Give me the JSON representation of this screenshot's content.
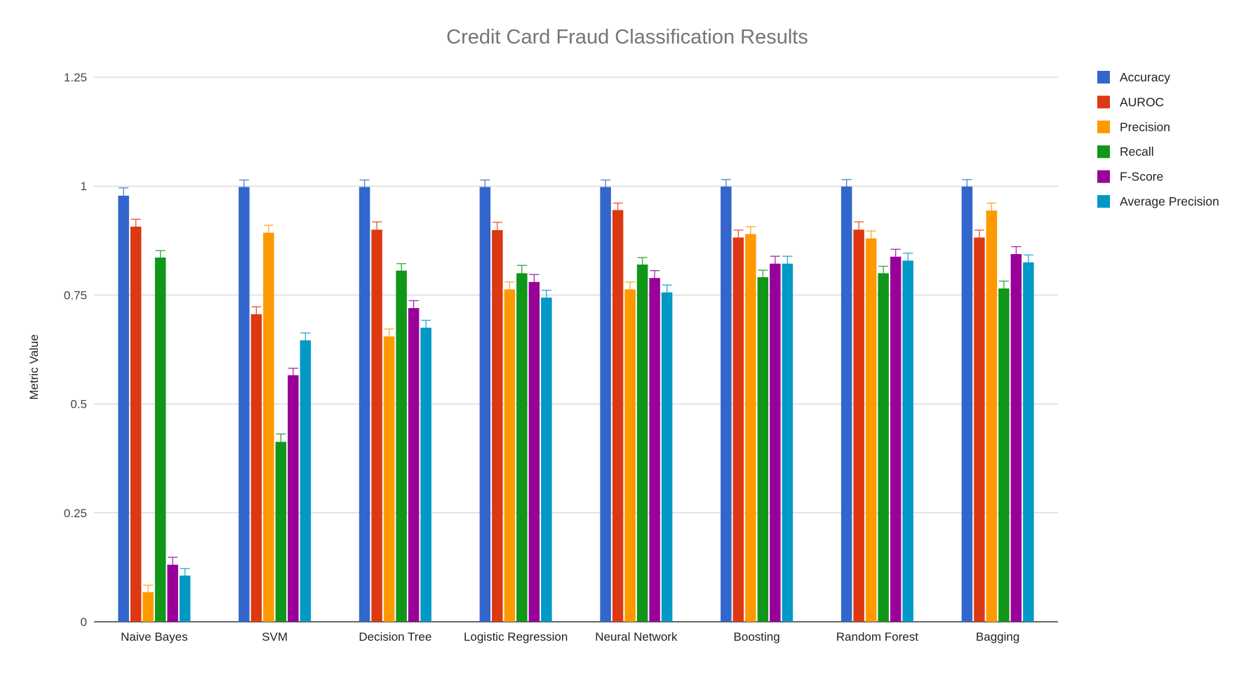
{
  "chart_data": {
    "type": "bar",
    "title": "Credit Card Fraud Classification Results",
    "xlabel": "",
    "ylabel": "Metric Value",
    "ylim": [
      0,
      1.25
    ],
    "yticks": [
      0,
      0.25,
      0.5,
      0.75,
      1,
      1.25
    ],
    "ytick_labels": [
      "0",
      "0.25",
      "0.5",
      "0.75",
      "1",
      "1.25"
    ],
    "grid": true,
    "legend_position": "right",
    "error_bars": true,
    "categories": [
      "Naive Bayes",
      "SVM",
      "Decision Tree",
      "Logistic Regression",
      "Neural Network",
      "Boosting",
      "Random Forest",
      "Bagging"
    ],
    "series": [
      {
        "name": "Accuracy",
        "color": "#3366cc",
        "values": [
          0.978,
          0.998,
          0.998,
          0.998,
          0.998,
          0.999,
          0.999,
          0.999
        ],
        "errors": [
          0.018,
          0.016,
          0.016,
          0.016,
          0.016,
          0.016,
          0.016,
          0.016
        ]
      },
      {
        "name": "AUROC",
        "color": "#dc3912",
        "values": [
          0.907,
          0.706,
          0.9,
          0.899,
          0.945,
          0.882,
          0.9,
          0.882
        ],
        "errors": [
          0.017,
          0.017,
          0.018,
          0.018,
          0.016,
          0.017,
          0.018,
          0.017
        ]
      },
      {
        "name": "Precision",
        "color": "#ff9900",
        "values": [
          0.068,
          0.893,
          0.655,
          0.763,
          0.763,
          0.89,
          0.88,
          0.944
        ],
        "errors": [
          0.016,
          0.017,
          0.017,
          0.017,
          0.017,
          0.017,
          0.017,
          0.017
        ]
      },
      {
        "name": "Recall",
        "color": "#109618",
        "values": [
          0.836,
          0.413,
          0.806,
          0.8,
          0.82,
          0.791,
          0.8,
          0.765
        ],
        "errors": [
          0.016,
          0.018,
          0.016,
          0.018,
          0.016,
          0.016,
          0.016,
          0.017
        ]
      },
      {
        "name": "F-Score",
        "color": "#990099",
        "values": [
          0.131,
          0.566,
          0.72,
          0.78,
          0.789,
          0.822,
          0.838,
          0.844
        ],
        "errors": [
          0.017,
          0.016,
          0.017,
          0.017,
          0.017,
          0.017,
          0.017,
          0.017
        ]
      },
      {
        "name": "Average Precision",
        "color": "#0099c6",
        "values": [
          0.106,
          0.646,
          0.675,
          0.744,
          0.756,
          0.822,
          0.829,
          0.825
        ],
        "errors": [
          0.016,
          0.017,
          0.017,
          0.017,
          0.017,
          0.017,
          0.017,
          0.017
        ]
      }
    ]
  }
}
